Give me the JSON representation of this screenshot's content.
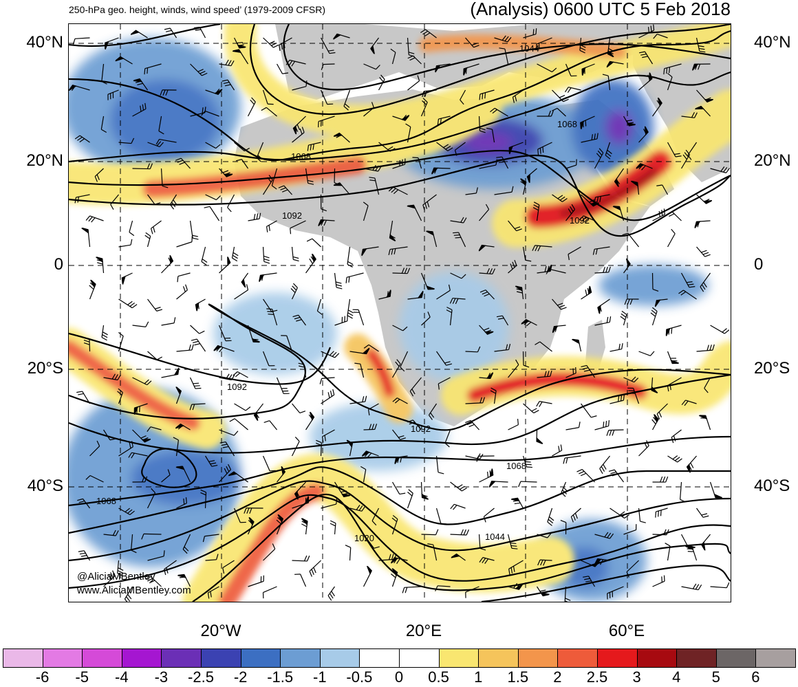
{
  "header": {
    "left_title": "250-hPa geo. height, winds, wind speed’ (1979-2009 CFSR)",
    "right_title": "(Analysis) 0600 UTC 5 Feb 2018"
  },
  "axes": {
    "lat_labels": [
      "40°N",
      "20°N",
      "0",
      "20°S",
      "40°S"
    ],
    "lon_labels": [
      "20°W",
      "20°E",
      "60°E"
    ]
  },
  "contour_labels": [
    "1044",
    "1068",
    "1068",
    "1092",
    "1092",
    "1092",
    "1092",
    "1068",
    "1068",
    "1020",
    "1044"
  ],
  "credits": [
    "@AliciaMBentley",
    "www.AliciaMBentley.com"
  ],
  "colorbar": {
    "labels": [
      "-6",
      "-5",
      "-4",
      "-3",
      "-2.5",
      "-2",
      "-1.5",
      "-1",
      "-0.5",
      "0",
      "0.5",
      "1",
      "1.5",
      "2",
      "2.5",
      "3",
      "4",
      "5",
      "6"
    ],
    "colors": [
      "#eab8e8",
      "#e37ae4",
      "#d54ad8",
      "#a516d1",
      "#6b2fb6",
      "#3b42b2",
      "#3c6fc2",
      "#6c9dd3",
      "#a7cbe8",
      "#ffffff",
      "#ffffff",
      "#f9e670",
      "#f5c45b",
      "#f3954b",
      "#ee5b3a",
      "#e5191c",
      "#a70a10",
      "#6f2325",
      "#6c6666",
      "#a79f9f"
    ]
  },
  "land_color": "#c8c8c8"
}
